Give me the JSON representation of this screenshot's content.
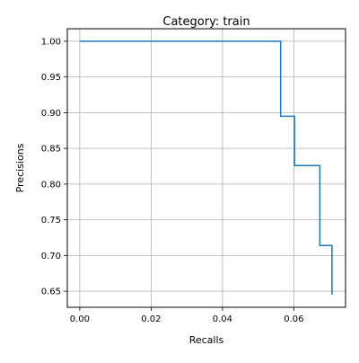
{
  "chart_data": {
    "type": "line",
    "step": "post",
    "title": "Category: train",
    "xlabel": "Recalls",
    "ylabel": "Precisions",
    "xlim": [
      -0.0035,
      0.0745
    ],
    "ylim": [
      0.6275,
      1.0175
    ],
    "xticks": [
      0.0,
      0.02,
      0.04,
      0.06
    ],
    "xtick_labels": [
      "0.00",
      "0.02",
      "0.04",
      "0.06"
    ],
    "yticks": [
      0.65,
      0.7,
      0.75,
      0.8,
      0.85,
      0.9,
      0.95,
      1.0
    ],
    "ytick_labels": [
      "0.65",
      "0.70",
      "0.75",
      "0.80",
      "0.85",
      "0.90",
      "0.95",
      "1.00"
    ],
    "grid": true,
    "line_color": "#1f77b4",
    "series": [
      {
        "x": [
          0.0,
          0.0563,
          0.0563,
          0.0602,
          0.0602,
          0.0673,
          0.0673,
          0.0707,
          0.0707
        ],
        "y": [
          1.0,
          1.0,
          0.895,
          0.895,
          0.826,
          0.826,
          0.714,
          0.714,
          0.645
        ]
      }
    ]
  }
}
